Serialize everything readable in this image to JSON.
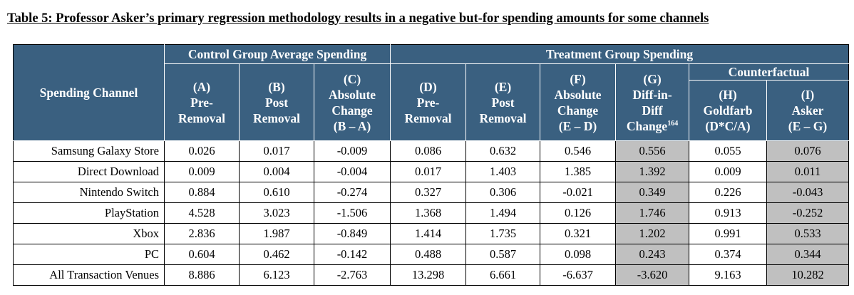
{
  "caption": "Table 5: Professor Asker’s primary regression methodology results in a negative but-for spending amounts for some channels",
  "headers": {
    "spending_channel": "Spending Channel",
    "control_group": "Control Group Average Spending",
    "treatment_group": "Treatment Group Spending",
    "counterfactual": "Counterfactual",
    "col_a": "(A)\nPre-\nRemoval",
    "col_b": "(B)\nPost\nRemoval",
    "col_c": "(C)\nAbsolute\nChange\n(B – A)",
    "col_d": "(D)\nPre-\nRemoval",
    "col_e": "(E)\nPost\nRemoval",
    "col_f": "(F)\nAbsolute\nChange\n(E – D)",
    "col_g_main": "(G)\nDiff-in-\nDiff\nChange",
    "col_g_footnote": "164",
    "col_h": "(H)\nGoldfarb\n(D*C/A)",
    "col_i": "(I)\nAsker\n(E – G)"
  },
  "rows": [
    {
      "channel": "Samsung Galaxy Store",
      "a": "0.026",
      "b": "0.017",
      "c": "-0.009",
      "d": "0.086",
      "e": "0.632",
      "f": "0.546",
      "g": "0.556",
      "h": "0.055",
      "i": "0.076"
    },
    {
      "channel": "Direct Download",
      "a": "0.009",
      "b": "0.004",
      "c": "-0.004",
      "d": "0.017",
      "e": "1.403",
      "f": "1.385",
      "g": "1.392",
      "h": "0.009",
      "i": "0.011"
    },
    {
      "channel": "Nintendo Switch",
      "a": "0.884",
      "b": "0.610",
      "c": "-0.274",
      "d": "0.327",
      "e": "0.306",
      "f": "-0.021",
      "g": "0.349",
      "h": "0.226",
      "i": "-0.043"
    },
    {
      "channel": "PlayStation",
      "a": "4.528",
      "b": "3.023",
      "c": "-1.506",
      "d": "1.368",
      "e": "1.494",
      "f": "0.126",
      "g": "1.746",
      "h": "0.913",
      "i": "-0.252"
    },
    {
      "channel": "Xbox",
      "a": "2.836",
      "b": "1.987",
      "c": "-0.849",
      "d": "1.414",
      "e": "1.735",
      "f": "0.321",
      "g": "1.202",
      "h": "0.991",
      "i": "0.533"
    },
    {
      "channel": "PC",
      "a": "0.604",
      "b": "0.462",
      "c": "-0.142",
      "d": "0.488",
      "e": "0.587",
      "f": "0.098",
      "g": "0.243",
      "h": "0.374",
      "i": "0.344"
    },
    {
      "channel": "All Transaction Venues",
      "a": "8.886",
      "b": "6.123",
      "c": "-2.763",
      "d": "13.298",
      "e": "6.661",
      "f": "-6.637",
      "g": "-3.620",
      "h": "9.163",
      "i": "10.282"
    }
  ],
  "colors": {
    "header_bg": "#3a6080",
    "shaded_cell": "#c0c0c0"
  }
}
